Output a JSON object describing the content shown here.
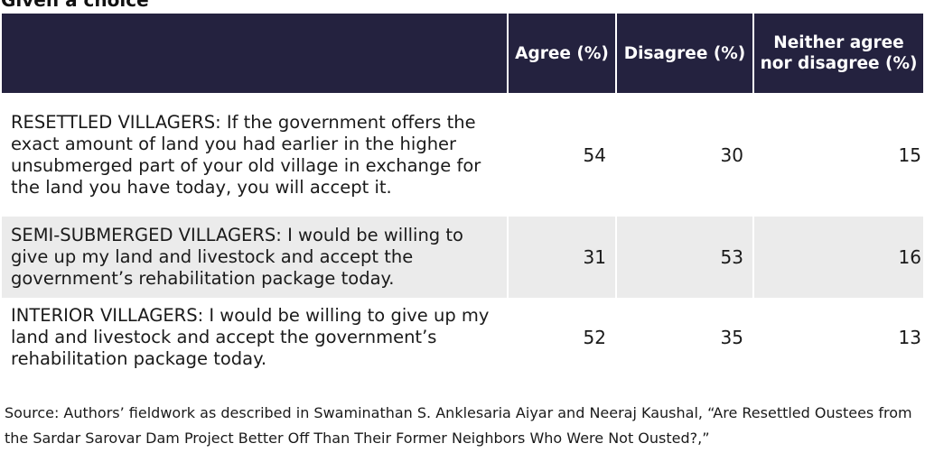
{
  "caption": "Given a choice",
  "table": {
    "headers": [
      "",
      "Agree (%)",
      "Disagree (%)",
      "Neither agree nor disagree (%)"
    ],
    "rows": [
      {
        "statement": "RESETTLED VILLAGERS: If the government offers the exact amount of land you had earlier in the higher unsubmerged part of your old village in exchange for the land you have today, you will accept it.",
        "agree": "54",
        "disagree": "30",
        "neither": "15"
      },
      {
        "statement": "SEMI-SUBMERGED VILLAGERS: I would be willing to give up my land and livestock and accept the government’s rehabilitation package today.",
        "agree": "31",
        "disagree": "53",
        "neither": "16"
      },
      {
        "statement": "INTERIOR VILLAGERS: I would be willing to give up my land and livestock and accept the government’s rehabilitation package today.",
        "agree": "52",
        "disagree": "35",
        "neither": "13"
      }
    ]
  },
  "source": "Source: Authors’ fieldwork as described in Swaminathan S. Anklesaria Aiyar and Neeraj Kaushal, “Are Resettled Oustees from the Sardar Sarovar Dam Project Better Off Than Their Former Neighbors Who Were Not Ousted?,”",
  "colors": {
    "header_bg": "#24223f",
    "header_text": "#ffffff",
    "shaded_row": "#ebebeb",
    "body_text": "#1a1a1a"
  }
}
